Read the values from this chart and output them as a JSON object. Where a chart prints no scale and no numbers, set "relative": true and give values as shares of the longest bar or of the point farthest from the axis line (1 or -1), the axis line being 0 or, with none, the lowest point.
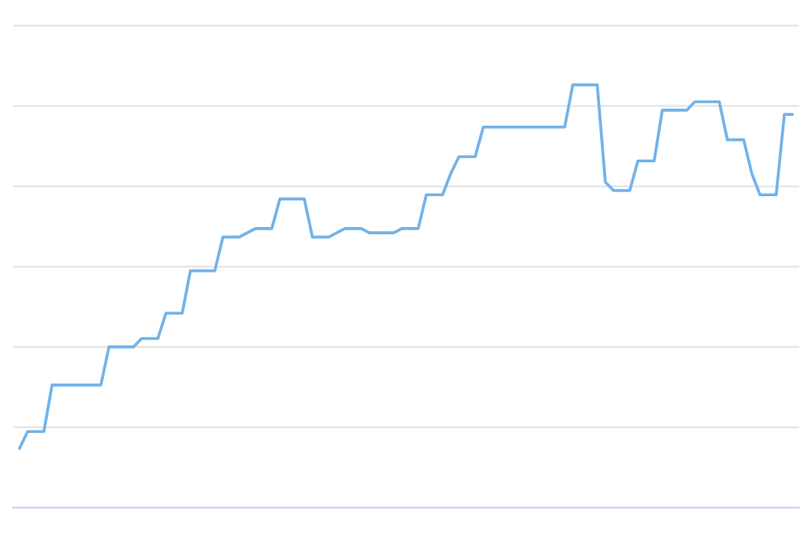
{
  "chart_data": {
    "type": "line",
    "relative": true,
    "grid": "y",
    "color": "#73b3e8",
    "tick_labels": false,
    "categories": [
      null,
      null,
      null,
      null,
      null,
      null,
      null,
      null,
      null,
      null,
      null,
      null,
      null,
      null,
      null,
      null,
      null,
      null,
      null,
      null,
      null,
      null,
      null,
      null,
      null,
      null,
      null,
      null,
      null,
      null,
      null,
      null,
      null,
      null,
      null,
      null,
      null,
      null,
      null,
      null,
      null,
      null,
      null,
      null,
      null,
      null,
      null,
      null,
      null,
      null,
      null,
      null,
      null,
      null,
      null,
      null,
      null,
      null,
      null,
      null,
      null,
      null,
      null,
      null,
      null,
      null,
      null,
      null,
      null,
      null,
      null,
      null,
      null,
      null,
      null,
      null,
      null,
      null,
      null,
      null,
      null,
      null,
      null,
      null,
      null,
      null,
      null,
      null,
      null,
      null,
      null,
      null,
      null,
      null,
      null,
      null
    ],
    "values": [
      0.14,
      0.18,
      0.18,
      0.18,
      0.29,
      0.29,
      0.29,
      0.29,
      0.29,
      0.29,
      0.29,
      0.38,
      0.38,
      0.38,
      0.38,
      0.4,
      0.4,
      0.4,
      0.46,
      0.46,
      0.46,
      0.56,
      0.56,
      0.56,
      0.56,
      0.64,
      0.64,
      0.64,
      0.65,
      0.66,
      0.66,
      0.66,
      0.73,
      0.73,
      0.73,
      0.73,
      0.64,
      0.64,
      0.64,
      0.65,
      0.66,
      0.66,
      0.66,
      0.65,
      0.65,
      0.65,
      0.65,
      0.66,
      0.66,
      0.66,
      0.74,
      0.74,
      0.74,
      0.79,
      0.83,
      0.83,
      0.83,
      0.9,
      0.9,
      0.9,
      0.9,
      0.9,
      0.9,
      0.9,
      0.9,
      0.9,
      0.9,
      0.9,
      1.0,
      1.0,
      1.0,
      1.0,
      0.77,
      0.75,
      0.75,
      0.75,
      0.82,
      0.82,
      0.82,
      0.94,
      0.94,
      0.94,
      0.94,
      0.96,
      0.96,
      0.96,
      0.96,
      0.87,
      0.87,
      0.87,
      0.79,
      0.74,
      0.74,
      0.74,
      0.93,
      0.93
    ]
  }
}
